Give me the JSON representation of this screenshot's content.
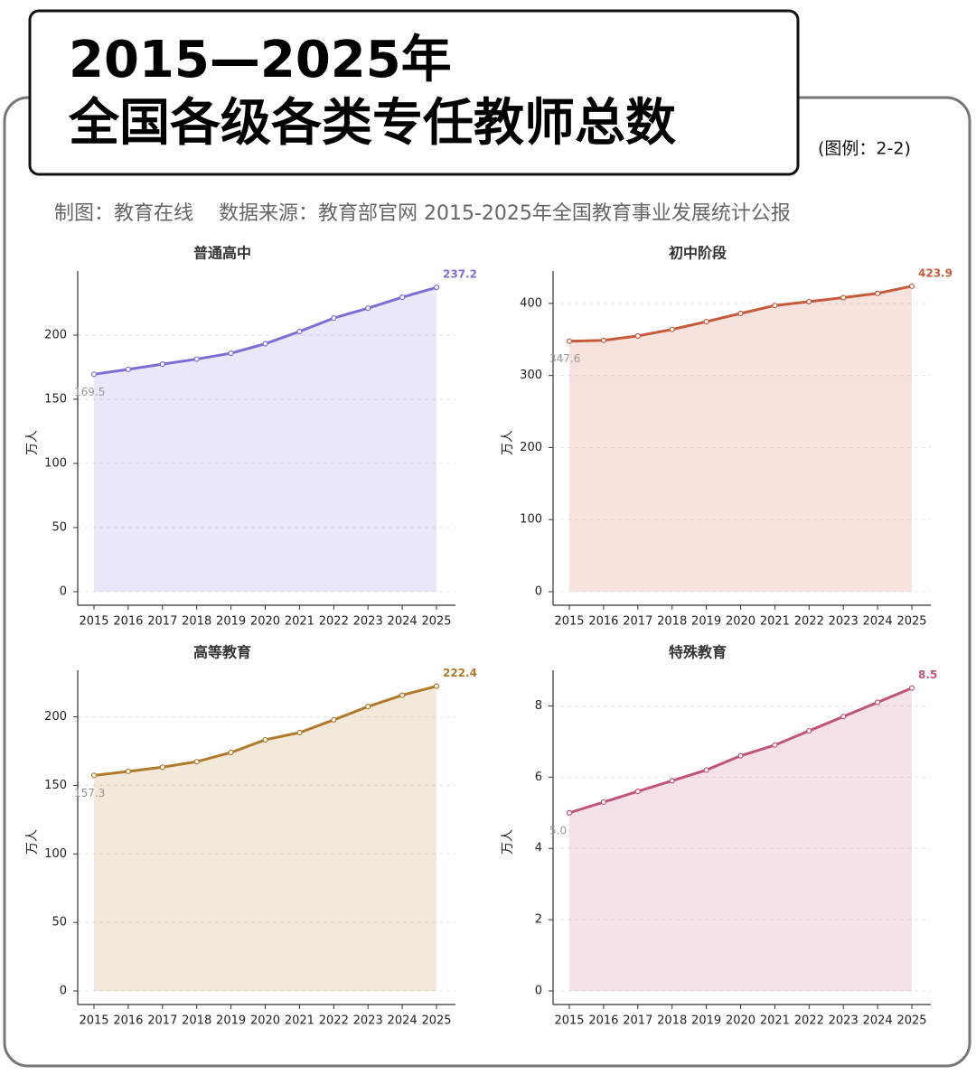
{
  "header": {
    "title_line1": "2015—2025年",
    "title_line2": "全国各级各类专任教师总数",
    "legend_note": "(图例：2-2)",
    "credit": "制图：教育在线    数据来源：教育部官网 2015-2025年全国教育事业发展统计公报"
  },
  "chart_data": [
    {
      "type": "area",
      "title": "普通高中",
      "ylabel": "万人",
      "color": "#7b6fd6",
      "categories": [
        "2015",
        "2016",
        "2017",
        "2018",
        "2019",
        "2020",
        "2021",
        "2022",
        "2023",
        "2024",
        "2025"
      ],
      "values": [
        169.5,
        173.3,
        177.4,
        181.3,
        185.9,
        193.3,
        202.8,
        213.3,
        221.0,
        229.5,
        237.2
      ],
      "ylim": [
        0,
        250
      ],
      "yticks": [
        0,
        50,
        100,
        150,
        200
      ],
      "grid": true
    },
    {
      "type": "area",
      "title": "初中阶段",
      "ylabel": "万人",
      "color": "#c75a3a",
      "categories": [
        "2015",
        "2016",
        "2017",
        "2018",
        "2019",
        "2020",
        "2021",
        "2022",
        "2023",
        "2024",
        "2025"
      ],
      "values": [
        347.6,
        348.8,
        354.9,
        363.9,
        374.7,
        386.1,
        397.1,
        402.5,
        408.0,
        414.0,
        423.9
      ],
      "ylim": [
        0,
        445
      ],
      "yticks": [
        0,
        100,
        200,
        300,
        400
      ],
      "grid": true
    },
    {
      "type": "area",
      "title": "高等教育",
      "ylabel": "万人",
      "color": "#b07a2a",
      "categories": [
        "2015",
        "2016",
        "2017",
        "2018",
        "2019",
        "2020",
        "2021",
        "2022",
        "2023",
        "2024",
        "2025"
      ],
      "values": [
        157.3,
        160.2,
        163.3,
        167.3,
        174.0,
        183.3,
        188.5,
        197.8,
        207.5,
        215.8,
        222.4
      ],
      "ylim": [
        0,
        234
      ],
      "yticks": [
        0,
        50,
        100,
        150,
        200
      ],
      "grid": true
    },
    {
      "type": "area",
      "title": "特殊教育",
      "ylabel": "万人",
      "color": "#c2537a",
      "categories": [
        "2015",
        "2016",
        "2017",
        "2018",
        "2019",
        "2020",
        "2021",
        "2022",
        "2023",
        "2024",
        "2025"
      ],
      "values": [
        5.0,
        5.3,
        5.6,
        5.9,
        6.2,
        6.6,
        6.9,
        7.3,
        7.7,
        8.1,
        8.5
      ],
      "value_labels": [
        "5.0",
        null,
        null,
        null,
        null,
        null,
        null,
        null,
        null,
        null,
        "8.5"
      ],
      "ylim": [
        0,
        9
      ],
      "yticks": [
        0,
        2,
        4,
        6,
        8
      ],
      "grid": true
    }
  ]
}
